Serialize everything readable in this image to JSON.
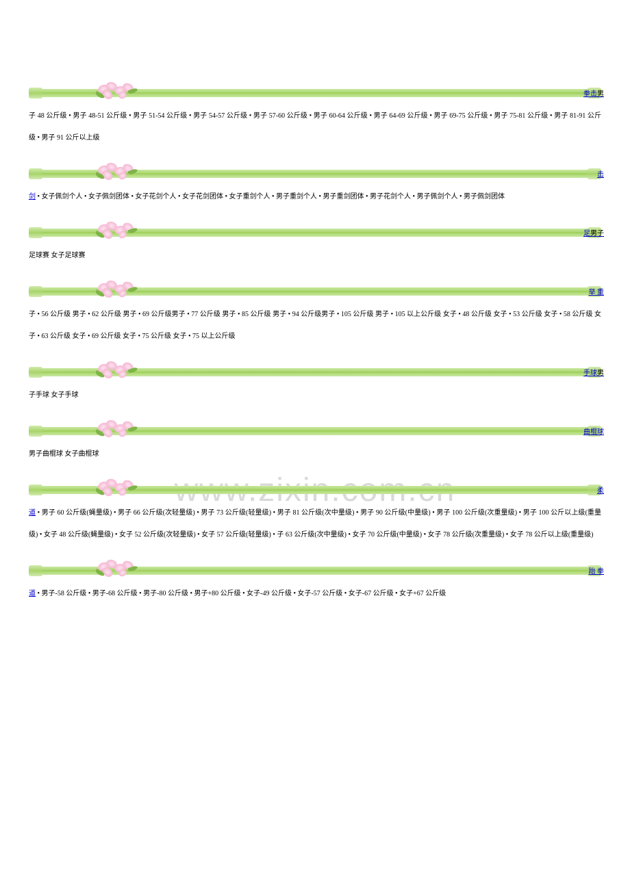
{
  "watermark": "www.zixin.com.cn",
  "sections": [
    {
      "title_link": "拳击",
      "title_trail": "男",
      "lead_link": "",
      "content": "子 48 公斤级 • 男子 48-51 公斤级  • 男子 51-54 公斤级  • 男子 54-57 公斤级  • 男子 57-60 公斤级  • 男子 60-64 公斤级  • 男子 64-69 公斤级  • 男子 69-75 公斤级  • 男子 75-81 公斤级   • 男子 81-91 公斤级  • 男子 91 公斤以上级"
    },
    {
      "title_link": "击",
      "title_trail": "",
      "lead_link": "剑",
      "content": " • 女子佩剑个人  • 女子佩剑团体  • 女子花剑个人  • 女子花剑团体  • 女子重剑个人 • 男子重剑个人  • 男子重剑团体  • 男子花剑个人  • 男子佩剑个人  • 男子佩剑团体"
    },
    {
      "title_link": "足",
      "title_trail": "男子",
      "lead_link": "",
      "content": "足球赛   女子足球赛"
    },
    {
      "title_link": "举  重",
      "title_trail": "",
      "lead_link": "",
      "content": "子 • 56 公斤级    男子 • 62 公斤级    男子 • 69 公斤级男子 • 77 公斤级    男子 • 85 公斤级    男子 • 94 公斤级男子 • 105 公斤级    男子 • 105 以上公斤级  女子 • 48 公斤级    女子 • 53 公斤级    女子 • 58 公斤级  女子 • 63 公斤级    女子 • 69 公斤级    女子 • 75 公斤级    女子 • 75 以上公斤级"
    },
    {
      "title_link": "手球",
      "title_trail": "男",
      "lead_link": "",
      "content": "子手球   女子手球"
    },
    {
      "title_link": "曲棍球",
      "title_trail": "",
      "lead_link": "",
      "content": "男子曲棍球   女子曲棍球"
    },
    {
      "title_link": "柔",
      "title_trail": "",
      "lead_link": "道",
      "content": " • 男子 60 公斤级(蝇量级)  • 男子 66 公斤级(次轻量级)  • 男子 73 公斤级(轻量级)  • 男子 81 公斤级(次中量级)  • 男子 90 公斤级(中量级)  • 男子 100 公斤级(次重量级)  • 男子 100 公斤以上级(重量级)  • 女子 48 公斤级(蝇量级)  • 女子 52 公斤级(次轻量级)  • 女子 57 公斤级(轻量级)  • 子 63 公斤级(次中量级)  • 女子 70 公斤级(中量级)  • 女子 78 公斤级(次重量级)  • 女子 78 公斤以上级(重量级)"
    },
    {
      "title_link": "跆  拳",
      "title_trail": "",
      "lead_link": "道",
      "content": " • 男子-58 公斤级  • 男子-68 公斤级  • 男子-80 公斤级  • 男子+80 公斤级  • 女子-49 公斤级  • 女子-57 公斤级  • 女子-67 公斤级  • 女子+67 公斤级"
    }
  ]
}
